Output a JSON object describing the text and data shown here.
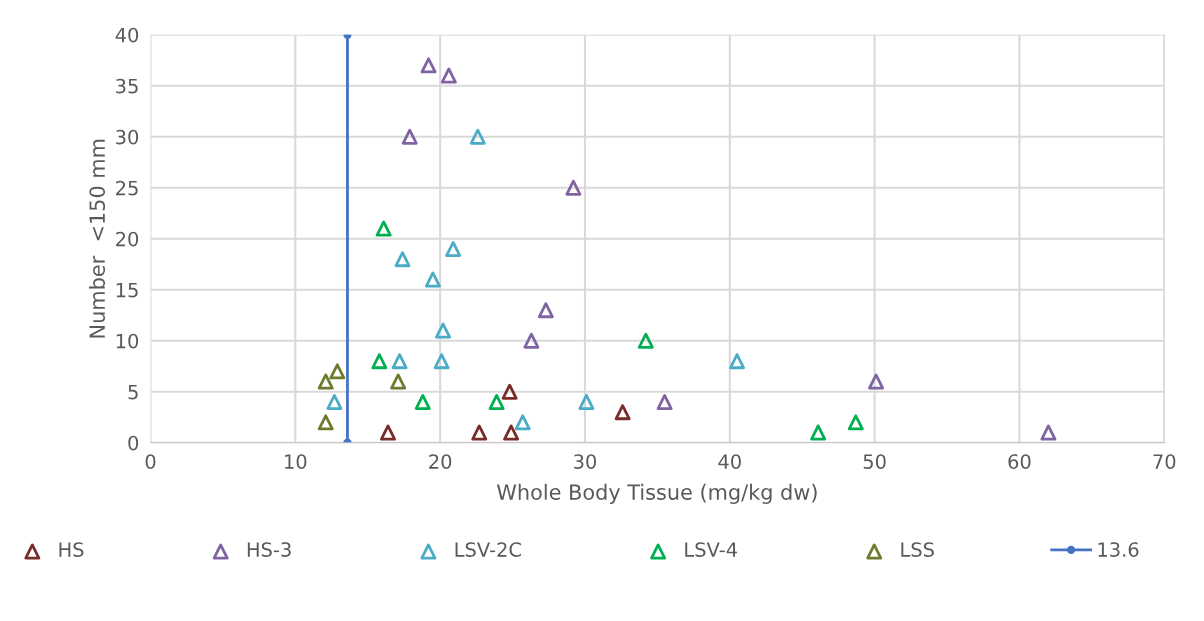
{
  "chart_data": {
    "type": "scatter",
    "xlabel": "Whole Body Tissue (mg/kg dw)",
    "ylabel": "Number  <150 mm",
    "xlim": [
      0,
      70
    ],
    "xticks": [
      0,
      10,
      20,
      30,
      40,
      50,
      60,
      70
    ],
    "ylim": [
      0,
      40
    ],
    "yticks": [
      0,
      5,
      10,
      15,
      20,
      25,
      30,
      35,
      40
    ],
    "grid": true,
    "legend": "bottom",
    "marker": "triangle",
    "series": [
      {
        "name": "HS",
        "color": "#772c2a",
        "x": [
          16.4,
          22.7,
          24.9,
          24.8,
          32.6
        ],
        "values": [
          1,
          1,
          1,
          5,
          3
        ]
      },
      {
        "name": "HS-3",
        "color": "#8064a2",
        "x": [
          19.2,
          20.6,
          17.9,
          29.2,
          27.3,
          26.3,
          35.5,
          50.1,
          62.0
        ],
        "values": [
          37,
          36,
          30,
          25,
          13,
          10,
          4,
          6,
          1
        ]
      },
      {
        "name": "LSV-2C",
        "color": "#4bacc6",
        "x": [
          22.6,
          20.9,
          17.4,
          19.5,
          20.2,
          17.2,
          20.1,
          12.7,
          30.1,
          25.7,
          40.5
        ],
        "values": [
          30,
          19,
          18,
          16,
          11,
          8,
          8,
          4,
          4,
          2,
          8
        ]
      },
      {
        "name": "LSV-4",
        "color": "#00b050",
        "x": [
          16.1,
          15.8,
          18.8,
          23.9,
          34.2,
          46.1,
          48.7
        ],
        "values": [
          21,
          8,
          4,
          4,
          10,
          1,
          2
        ]
      },
      {
        "name": "LSS",
        "color": "#6b7c2e",
        "x": [
          12.9,
          12.1,
          17.1,
          12.1
        ],
        "values": [
          7,
          6,
          6,
          2
        ]
      },
      {
        "name": "13.6",
        "type": "line",
        "color": "#4472c4",
        "marker": "circle",
        "x": [
          13.6,
          13.6
        ],
        "values": [
          0,
          40
        ]
      }
    ]
  }
}
